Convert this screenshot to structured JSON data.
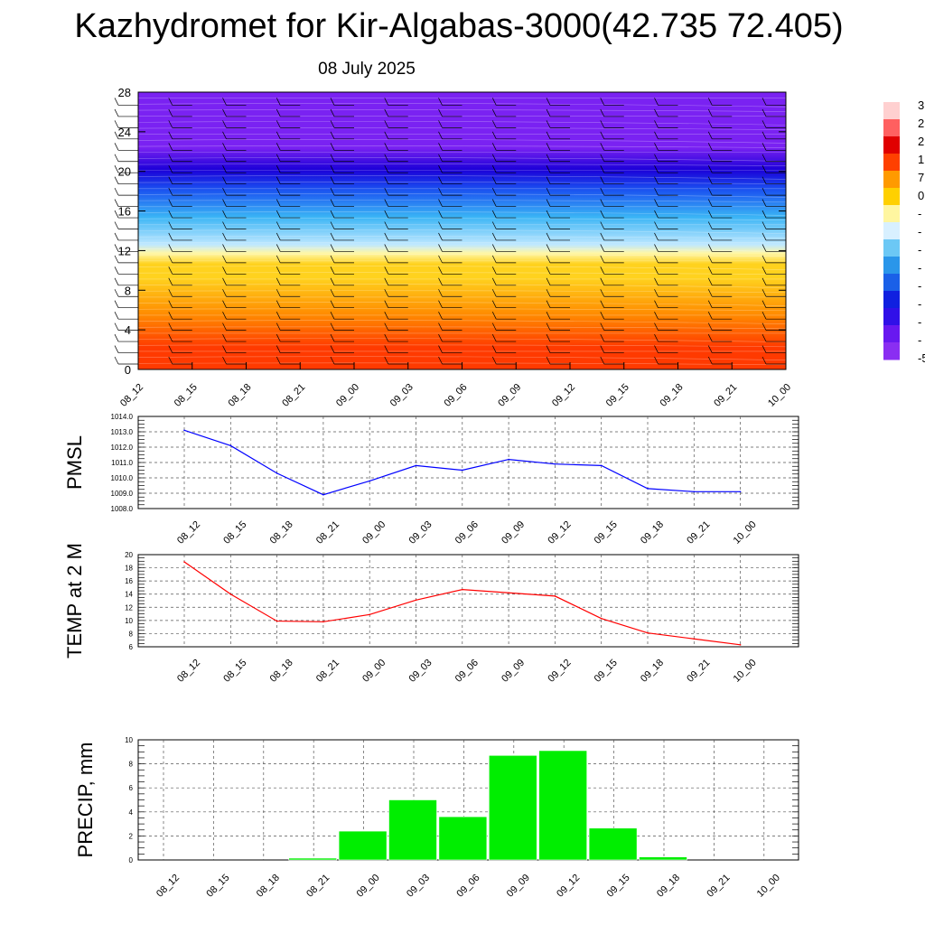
{
  "title": "Kazhydromet for Kir-Algabas-3000(42.735 72.405)",
  "subtitle": "08 July 2025",
  "time_labels": [
    "08_12",
    "08_15",
    "08_18",
    "08_21",
    "09_00",
    "09_03",
    "09_06",
    "09_09",
    "09_12",
    "09_15",
    "09_18",
    "09_21",
    "10_00"
  ],
  "chart_data": [
    {
      "type": "heatmap",
      "name": "cross-section",
      "x": [
        "08_12",
        "08_15",
        "08_18",
        "08_21",
        "09_00",
        "09_03",
        "09_06",
        "09_09",
        "09_12",
        "09_15",
        "09_18",
        "09_21",
        "10_00"
      ],
      "y_ticks": [
        0,
        4,
        8,
        12,
        16,
        20,
        24,
        28
      ],
      "ylim": [
        0,
        28
      ],
      "colorbar_labels": [
        "3",
        "2",
        "2",
        "1",
        "7",
        "0",
        "-",
        "-",
        "-",
        "-",
        "-",
        "-",
        "-",
        "-",
        "-5"
      ],
      "colors": [
        "#ff3a00",
        "#ff8c00",
        "#ffd21e",
        "#fff7a8",
        "#bfe8ff",
        "#3ab4f5",
        "#1a50f0",
        "#1b00d8",
        "#7a22f2"
      ]
    },
    {
      "type": "line",
      "name": "pmsl",
      "ylabel": "PMSL",
      "x": [
        "08_12",
        "08_15",
        "08_18",
        "08_21",
        "09_00",
        "09_03",
        "09_06",
        "09_09",
        "09_12",
        "09_15",
        "09_18",
        "09_21",
        "10_00"
      ],
      "values": [
        1013.1,
        1012.1,
        1010.3,
        1008.9,
        1009.8,
        1010.8,
        1010.5,
        1011.2,
        1010.9,
        1010.8,
        1009.3,
        1009.1,
        1009.1
      ],
      "ylim": [
        1008.0,
        1014.0
      ],
      "yticks": [
        "1008.0",
        "1009.0",
        "1010.0",
        "1011.0",
        "1012.0",
        "1013.0",
        "1014.0"
      ],
      "color": "#0000ff"
    },
    {
      "type": "line",
      "name": "temp",
      "ylabel": "TEMP at 2 M",
      "x": [
        "08_12",
        "08_15",
        "08_18",
        "08_21",
        "09_00",
        "09_03",
        "09_06",
        "09_09",
        "09_12",
        "09_15",
        "09_18",
        "09_21",
        "10_00"
      ],
      "values": [
        18.9,
        14.0,
        9.9,
        9.8,
        10.9,
        13.1,
        14.7,
        14.2,
        13.7,
        10.3,
        8.1,
        7.2,
        6.3
      ],
      "ylim": [
        6,
        20
      ],
      "yticks": [
        "6",
        "8",
        "10",
        "12",
        "14",
        "16",
        "18",
        "20"
      ],
      "color": "#ff0000"
    },
    {
      "type": "bar",
      "name": "precip",
      "ylabel": "PRECIP, mm",
      "x": [
        "08_12",
        "08_15",
        "08_18",
        "08_21",
        "09_00",
        "09_03",
        "09_06",
        "09_09",
        "09_12",
        "09_15",
        "09_18",
        "09_21",
        "10_00"
      ],
      "values": [
        0,
        0,
        0,
        0.15,
        2.4,
        5.0,
        3.6,
        8.7,
        9.1,
        2.65,
        0.25,
        0,
        0
      ],
      "ylim": [
        0,
        10
      ],
      "yticks": [
        "0",
        "2",
        "4",
        "6",
        "8",
        "10"
      ],
      "color": "#00ee00"
    }
  ]
}
